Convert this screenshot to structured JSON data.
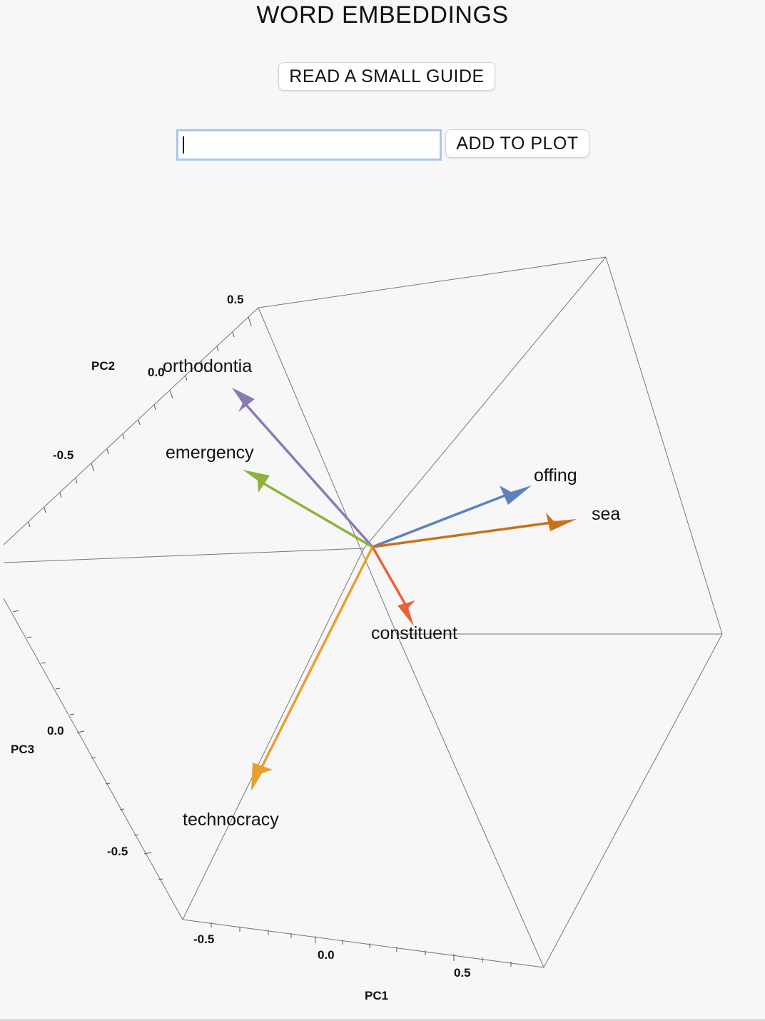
{
  "header": {
    "title": "WORD EMBEDDINGS"
  },
  "guide_button": {
    "label": "READ A SMALL GUIDE"
  },
  "word_input": {
    "value": "",
    "placeholder": ""
  },
  "add_button": {
    "label": "ADD TO PLOT"
  },
  "chart_data": {
    "type": "3d-vector",
    "axes": {
      "PC1": {
        "label": "PC1",
        "ticks": [
          "-0.5",
          "0.0",
          "0.5"
        ]
      },
      "PC2": {
        "label": "PC2",
        "ticks": [
          "-0.5",
          "0.0",
          "0.5"
        ]
      },
      "PC3": {
        "label": "PC3",
        "ticks": [
          "-0.5",
          "0.0"
        ]
      }
    },
    "vectors": [
      {
        "word": "orthodontia",
        "color": "#8a7ab5"
      },
      {
        "word": "emergency",
        "color": "#8db33a"
      },
      {
        "word": "offing",
        "color": "#5e81bd"
      },
      {
        "word": "sea",
        "color": "#c8711d"
      },
      {
        "word": "constituent",
        "color": "#e8613a"
      },
      {
        "word": "technocracy",
        "color": "#e6a02e"
      }
    ]
  }
}
